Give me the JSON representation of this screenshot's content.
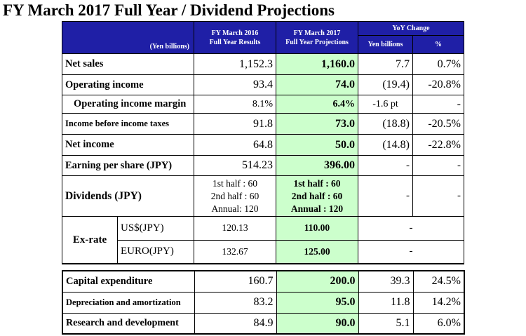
{
  "title": "FY March 2017 Full Year / Dividend Projections",
  "header": {
    "unit": "(Yen billions)",
    "col_prev_line1": "FY March 2016",
    "col_prev_line2": "Full Year Results",
    "col_proj_line1": "FY March 2017",
    "col_proj_line2": "Full Year Projections",
    "yoy": "YoY Change",
    "yoy_yen": "Yen billions",
    "yoy_pct": "%"
  },
  "rows": [
    {
      "label": "Net sales",
      "prev": "1,152.3",
      "proj": "1,160.0",
      "yoy": "7.7",
      "pct": "0.7%"
    },
    {
      "label": "Operating income",
      "prev": "93.4",
      "proj": "74.0",
      "yoy": "(19.4)",
      "pct": "-20.8%"
    },
    {
      "label": "Operating income margin",
      "prev": "8.1%",
      "proj": "6.4%",
      "yoy": "-1.6 pt",
      "pct": "-"
    },
    {
      "label": "Income before income taxes",
      "prev": "91.8",
      "proj": "73.0",
      "yoy": "(18.8)",
      "pct": "-20.5%"
    },
    {
      "label": "Net income",
      "prev": "64.8",
      "proj": "50.0",
      "yoy": "(14.8)",
      "pct": "-22.8%"
    },
    {
      "label": "Earning per share (JPY)",
      "prev": "514.23",
      "proj": "396.00",
      "yoy": "-",
      "pct": "-"
    }
  ],
  "dividends": {
    "label": "Dividends (JPY)",
    "prev": [
      "1st half : 60",
      "2nd half : 60",
      "Annual: 120"
    ],
    "proj": [
      "1st half : 60",
      "2nd half : 60",
      "Annual : 120"
    ],
    "yoy": "-",
    "pct": "-"
  },
  "exrate": {
    "label": "Ex-rate",
    "usd": {
      "label": "US$(JPY)",
      "prev": "120.13",
      "proj": "110.00",
      "yoy": "-"
    },
    "euro": {
      "label": "EURO(JPY)",
      "prev": "132.67",
      "proj": "125.00",
      "yoy": "-"
    }
  },
  "bottom_rows": [
    {
      "label": "Capital expenditure",
      "prev": "160.7",
      "proj": "200.0",
      "yoy": "39.3",
      "pct": "24.5%"
    },
    {
      "label": "Depreciation and amortization",
      "prev": "83.2",
      "proj": "95.0",
      "yoy": "11.8",
      "pct": "14.2%"
    },
    {
      "label": "Research and development",
      "prev": "84.9",
      "proj": "90.0",
      "yoy": "5.1",
      "pct": "6.0%"
    }
  ],
  "colors": {
    "header_bg": "#1f1fa6",
    "projection_bg": "#ccffcc"
  }
}
